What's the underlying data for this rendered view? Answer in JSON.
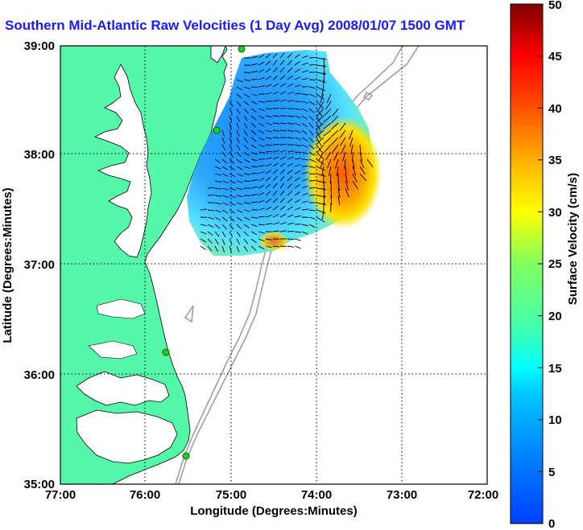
{
  "title": "Southern Mid-Atlantic Raw Velocities (1 Day Avg) 2008/01/07 1500 GMT",
  "map": {
    "xlabel": "Longitude (Degrees:Minutes)",
    "ylabel": "Latitude (Degrees:Minutes)",
    "x_ticks": [
      "77:00",
      "76:00",
      "75:00",
      "74:00",
      "73:00",
      "72:00"
    ],
    "y_ticks": [
      "39:00",
      "38:00",
      "37:00",
      "36:00",
      "35:00"
    ],
    "grid": "dotted",
    "colors": {
      "land": "#55f7a8",
      "ocean": "#ffffff",
      "bathymetry": "#9a9a9a",
      "station": "#22cc22",
      "title": "#1a1aff"
    }
  },
  "colorbar": {
    "label": "Surface Velocity (cm/s)",
    "ticks": [
      "0",
      "5",
      "10",
      "15",
      "20",
      "25",
      "30",
      "35",
      "40",
      "45",
      "50"
    ],
    "min": 0,
    "max": 50,
    "colormap": "jet"
  }
}
